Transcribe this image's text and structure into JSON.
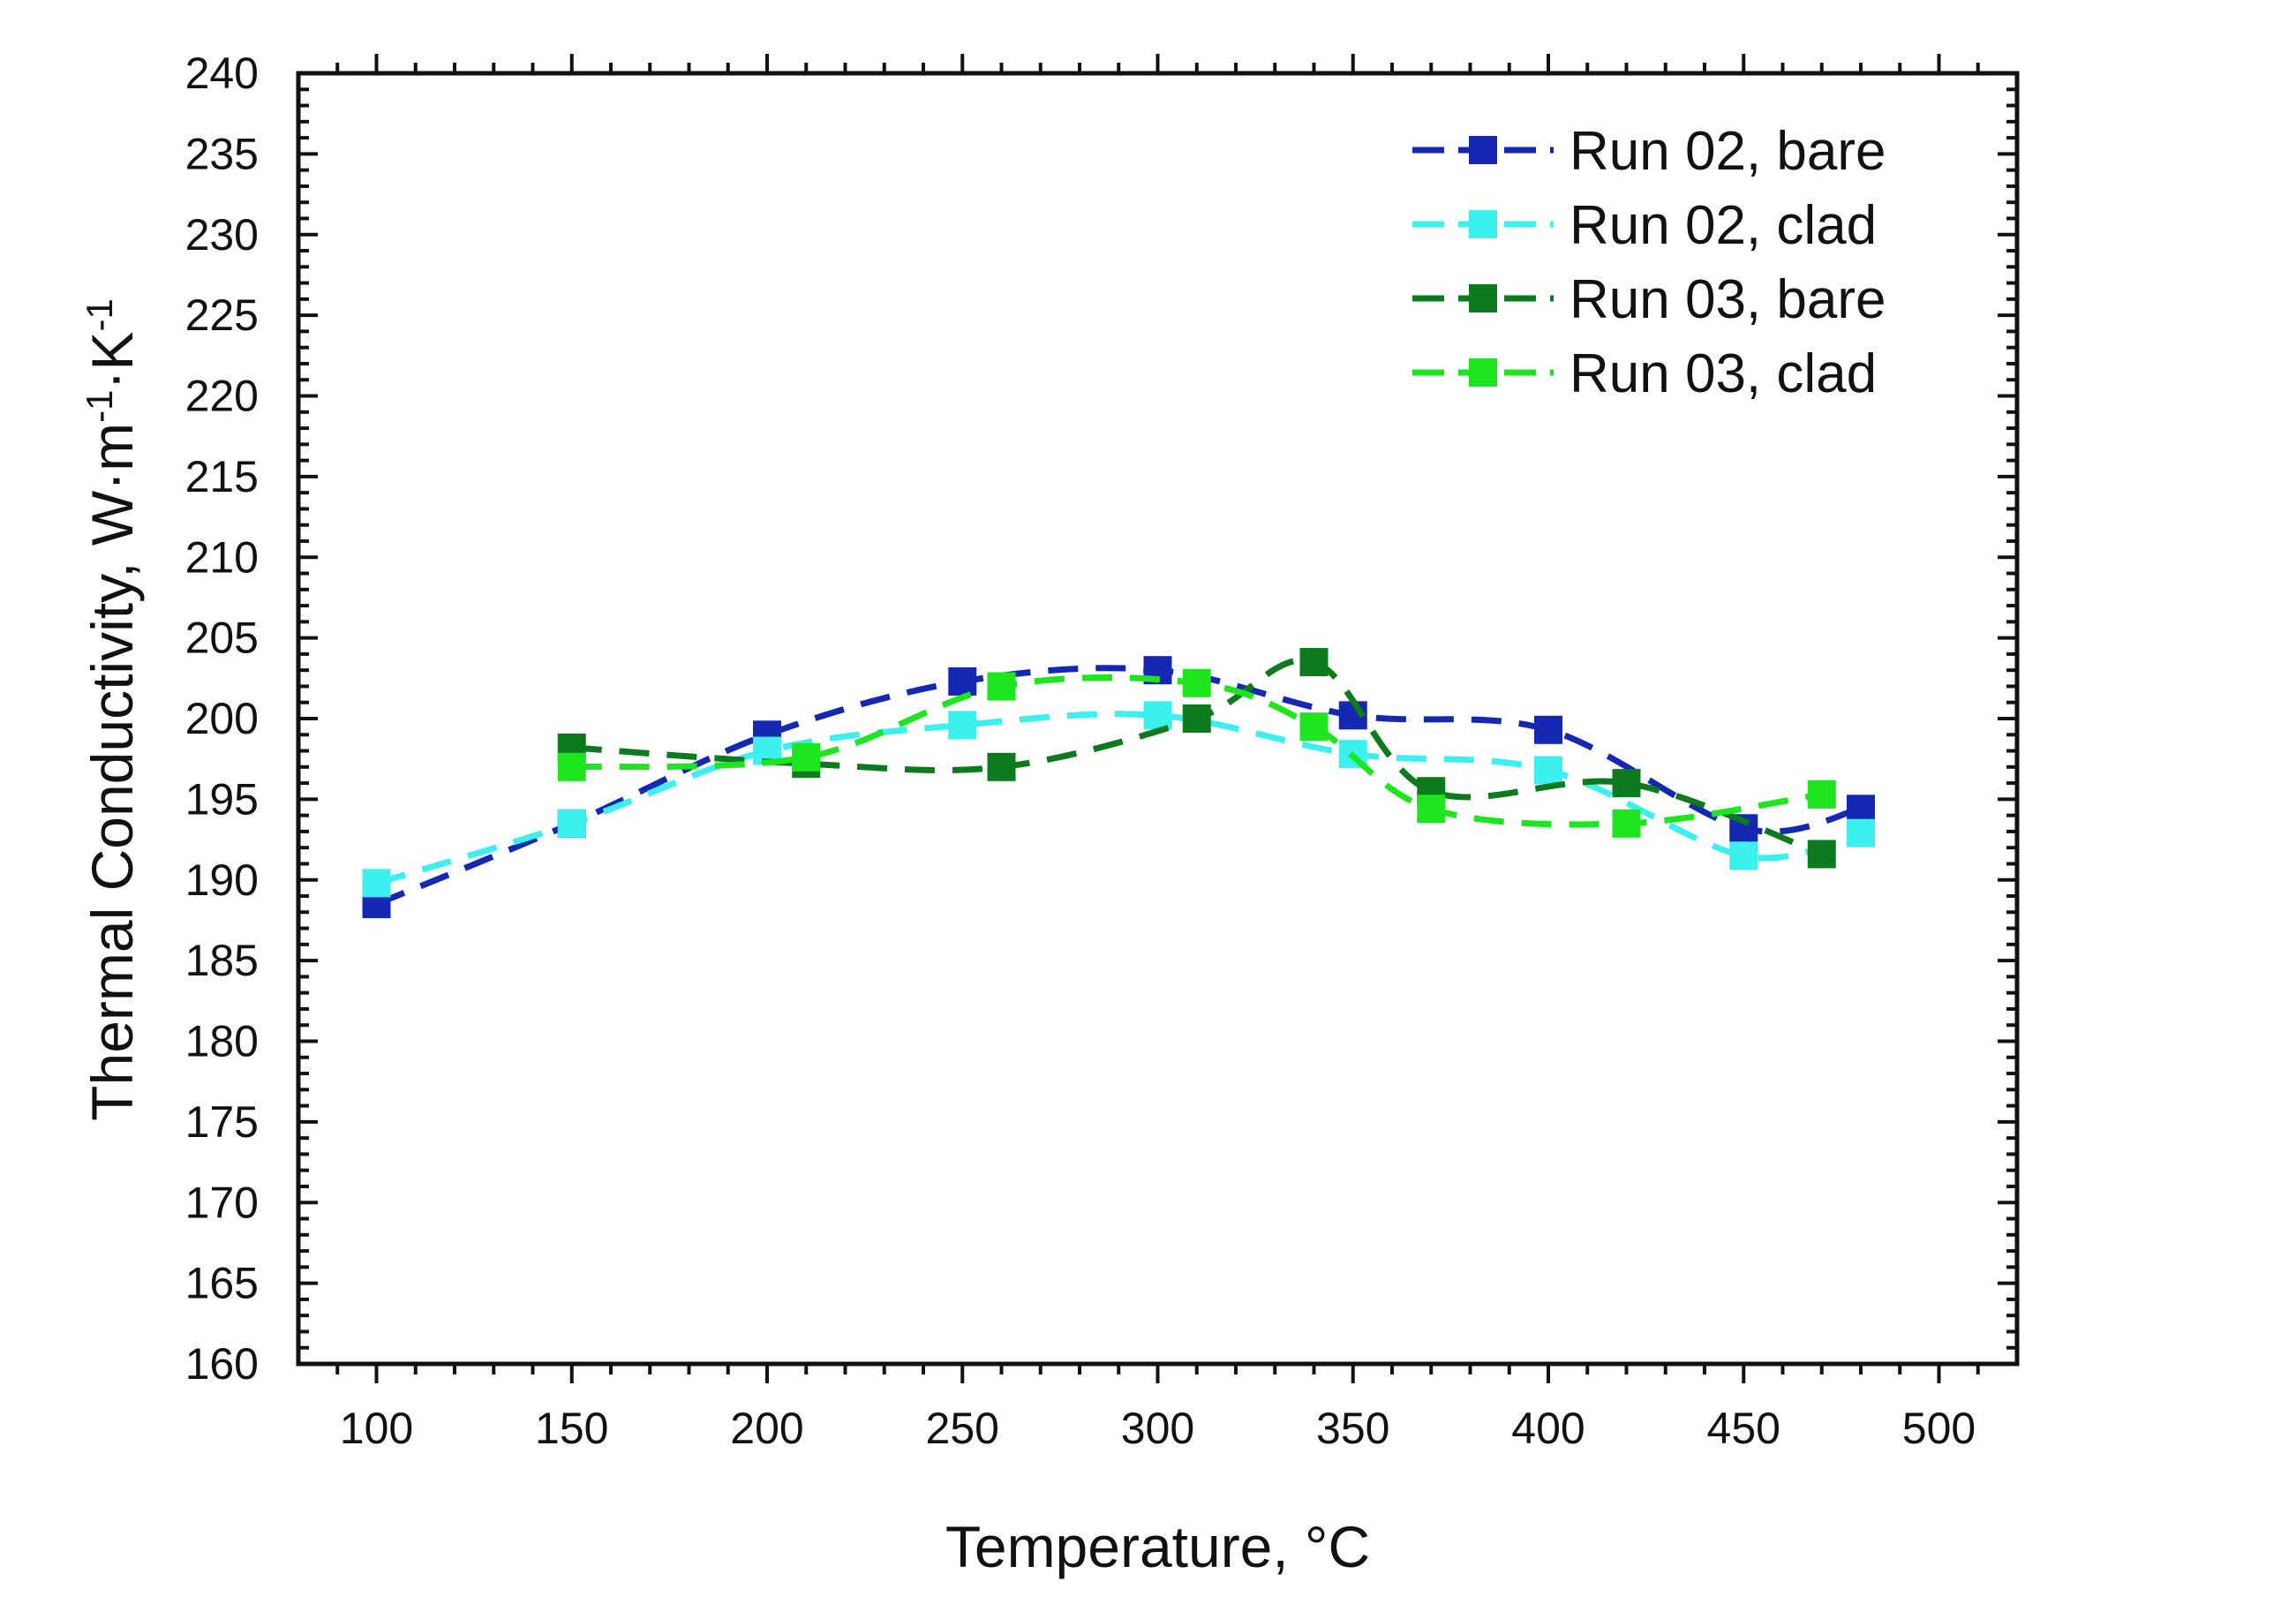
{
  "chart_data": {
    "type": "line",
    "title": "",
    "xlabel": "Temperature, °C",
    "ylabel_parts": {
      "base": "Thermal Conductivity, W·m",
      "sup1": "-1",
      "mid": "·K",
      "sup2": "-1"
    },
    "xlim": [
      80,
      520
    ],
    "ylim": [
      160,
      240
    ],
    "x_ticks": [
      "100",
      "150",
      "200",
      "250",
      "300",
      "350",
      "400",
      "450",
      "500"
    ],
    "y_ticks": [
      "160",
      "165",
      "170",
      "175",
      "180",
      "185",
      "190",
      "195",
      "200",
      "205",
      "210",
      "215",
      "220",
      "225",
      "230",
      "235",
      "240"
    ],
    "grid": false,
    "legend_position": "top-right",
    "line_style": "dashed with square markers",
    "series": [
      {
        "name": "Run 02, bare",
        "color": "#1428b4",
        "x": [
          100,
          150,
          200,
          250,
          300,
          350,
          400,
          450,
          480
        ],
        "y": [
          188.5,
          193.5,
          199,
          202.3,
          203,
          200.2,
          199.3,
          193.2,
          194.4
        ]
      },
      {
        "name": "Run 02, clad",
        "color": "#3cf0f0",
        "x": [
          100,
          150,
          200,
          250,
          300,
          350,
          400,
          450,
          480
        ],
        "y": [
          189.8,
          193.5,
          198,
          199.6,
          200.2,
          197.8,
          196.8,
          191.5,
          192.9
        ]
      },
      {
        "name": "Run 03, bare",
        "color": "#0e7a1e",
        "x": [
          150,
          210,
          260,
          310,
          340,
          370,
          420,
          470
        ],
        "y": [
          198.2,
          197.2,
          197,
          200,
          203.5,
          195.5,
          196,
          191.6
        ]
      },
      {
        "name": "Run 03, clad",
        "color": "#1ee61e",
        "x": [
          150,
          210,
          260,
          310,
          340,
          370,
          420,
          470
        ],
        "y": [
          197,
          197.6,
          202,
          202.2,
          199.5,
          194.4,
          193.5,
          195.3
        ]
      }
    ]
  }
}
